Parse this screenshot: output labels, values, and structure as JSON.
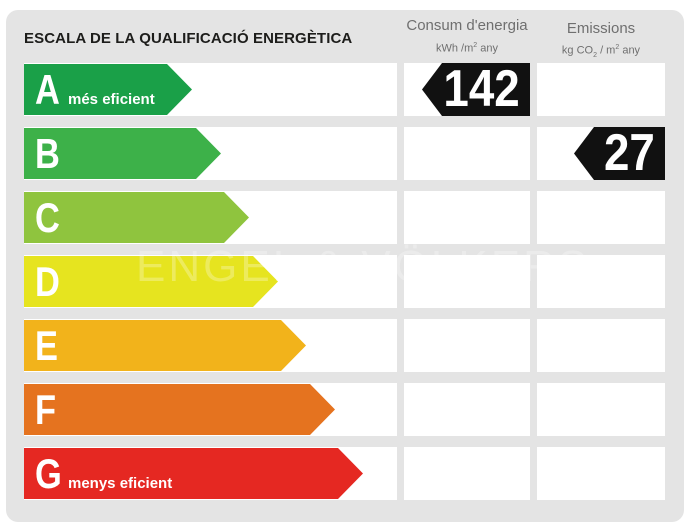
{
  "title": "ESCALA DE LA QUALIFICACIÓ ENERGÈTICA",
  "columns": {
    "consum": {
      "label": "Consum d'energia",
      "unit_main": "kWh /m",
      "unit_exp": "2",
      "unit_tail": " any"
    },
    "emissions": {
      "label": "Emissions",
      "unit_main": "kg CO",
      "unit_sub": "2",
      "unit_mid": " / m",
      "unit_exp": "2",
      "unit_tail": " any"
    }
  },
  "classes": [
    {
      "letter": "A",
      "subtitle": "més eficient",
      "color": "#1aa048"
    },
    {
      "letter": "B",
      "subtitle": "",
      "color": "#3db149"
    },
    {
      "letter": "C",
      "subtitle": "",
      "color": "#8fc43e"
    },
    {
      "letter": "D",
      "subtitle": "",
      "color": "#e6e41f"
    },
    {
      "letter": "E",
      "subtitle": "",
      "color": "#f2b31b"
    },
    {
      "letter": "F",
      "subtitle": "",
      "color": "#e5731f"
    },
    {
      "letter": "G",
      "subtitle": "menys eficient",
      "color": "#e52822"
    }
  ],
  "ratings": {
    "consum": {
      "value": "142",
      "class": "A"
    },
    "emissions": {
      "value": "27",
      "class": "B"
    }
  },
  "badge_color": "#111111",
  "watermark": "ENGEL & VÖLKERS"
}
